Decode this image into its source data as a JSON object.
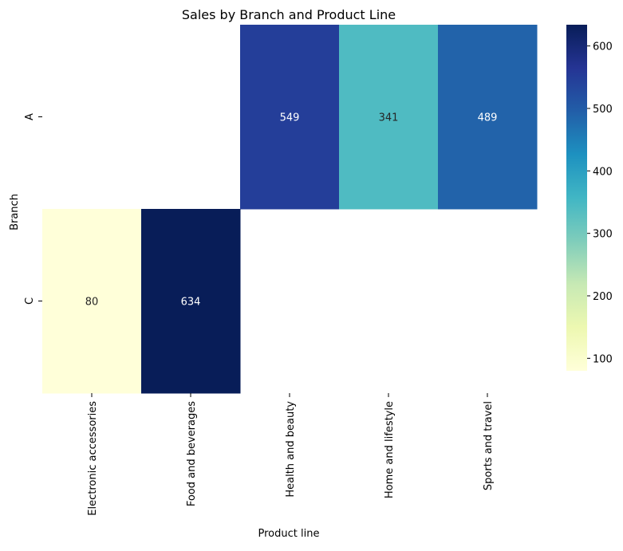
{
  "chart_data": {
    "type": "heatmap",
    "title": "Sales by Branch and Product Line",
    "xlabel": "Product line",
    "ylabel": "Branch",
    "x_categories": [
      "Electronic accessories",
      "Food and beverages",
      "Health and beauty",
      "Home and lifestyle",
      "Sports and travel"
    ],
    "y_categories": [
      "A",
      "C"
    ],
    "values": [
      [
        null,
        null,
        549,
        341,
        489
      ],
      [
        80,
        634,
        null,
        null,
        null
      ]
    ],
    "colormap": "YlGnBu",
    "color_range": [
      80,
      634
    ],
    "colorbar_ticks": [
      100,
      200,
      300,
      400,
      500,
      600
    ],
    "colors": {
      "cell_A_health": "#273a98",
      "cell_A_home": "#47bbc7",
      "cell_A_sports": "#2259a6",
      "cell_C_electronic": "#ffffda",
      "cell_C_food": "#0b1e58"
    }
  }
}
